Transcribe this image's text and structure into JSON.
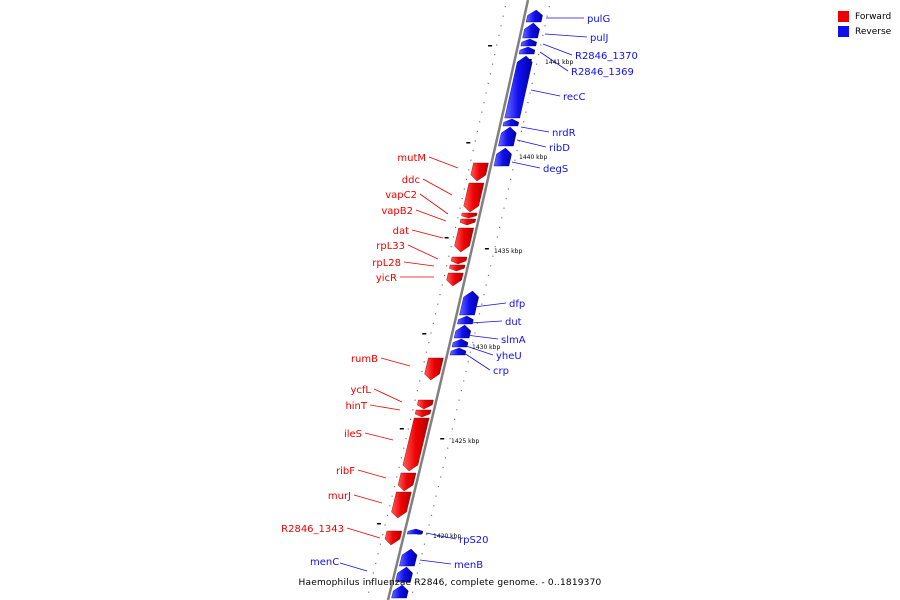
{
  "colors": {
    "forward": "#ee0000",
    "reverse": "#1010ee",
    "backbone": "#808080"
  },
  "legend": [
    {
      "label": "Forward",
      "color": "#ee0000"
    },
    {
      "label": "Reverse",
      "color": "#1010ee"
    }
  ],
  "caption": "Haemophilus influenzae R2846, complete genome. - 0..1819370",
  "kbp_labels": [
    "1420 kbp",
    "1425 kbp",
    "1430 kbp",
    "1435 kbp",
    "1440 kbp",
    "1441 kbp"
  ],
  "genes_forward": [
    "mutM",
    "ddc",
    "vapC2",
    "vapB2",
    "dat",
    "rpL33",
    "rpL28",
    "yicR",
    "rumB",
    "ycfL",
    "hinT",
    "ileS",
    "ribF",
    "murJ",
    "R2846_1343"
  ],
  "genes_reverse": [
    "pulG",
    "pulJ",
    "R2846_1370",
    "R2846_1369",
    "recC",
    "nrdR",
    "ribD",
    "degS",
    "dfp",
    "dut",
    "slmA",
    "yheU",
    "crp",
    "rpS20",
    "menB",
    "menC"
  ]
}
